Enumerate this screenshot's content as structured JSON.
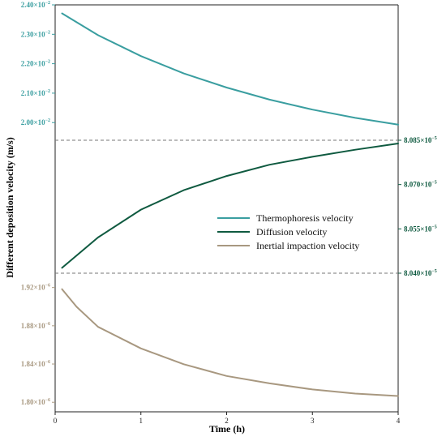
{
  "chart_data": {
    "type": "line",
    "xlabel": "Time (h)",
    "ylabel": "Different deposition velocity (m/s)",
    "x_ticks": [
      "0",
      "1",
      "2",
      "3",
      "4"
    ],
    "xlim": [
      0,
      4
    ],
    "grid": false,
    "legend": {
      "placement": "center-right",
      "entries": [
        "Thermophoresis velocity",
        "Diffusion velocity",
        "Inertial impaction velocity"
      ]
    },
    "panels": [
      {
        "axis": "left",
        "ylim": [
          0.0194,
          0.024
        ],
        "ticks": [
          {
            "value": 0.02,
            "mant": "2.00",
            "exp": "−2"
          },
          {
            "value": 0.021,
            "mant": "2.10",
            "exp": "−2"
          },
          {
            "value": 0.022,
            "mant": "2.20",
            "exp": "−2"
          },
          {
            "value": 0.023,
            "mant": "2.30",
            "exp": "−2"
          },
          {
            "value": 0.024,
            "mant": "2.40",
            "exp": "−2"
          }
        ]
      },
      {
        "axis": "right",
        "ylim": [
          8.04e-05,
          8.085e-05
        ],
        "ticks": [
          {
            "value": 8.04e-05,
            "mant": "8.040",
            "exp": "−5"
          },
          {
            "value": 8.055e-05,
            "mant": "8.055",
            "exp": "−5"
          },
          {
            "value": 8.07e-05,
            "mant": "8.070",
            "exp": "−5"
          },
          {
            "value": 8.085e-05,
            "mant": "8.085",
            "exp": "−5"
          }
        ]
      },
      {
        "axis": "left",
        "ylim": [
          1.79e-06,
          1.935e-06
        ],
        "ticks": [
          {
            "value": 1.8e-06,
            "mant": "1.80",
            "exp": "−6"
          },
          {
            "value": 1.84e-06,
            "mant": "1.84",
            "exp": "−6"
          },
          {
            "value": 1.88e-06,
            "mant": "1.88",
            "exp": "−6"
          },
          {
            "value": 1.92e-06,
            "mant": "1.92",
            "exp": "−6"
          }
        ]
      }
    ],
    "series": [
      {
        "name": "Thermophoresis velocity",
        "color": "#3a9ea0",
        "panel": 0,
        "x": [
          0.08,
          0.5,
          1.0,
          1.5,
          2.0,
          2.5,
          3.0,
          3.5,
          4.0
        ],
        "y": [
          0.02371,
          0.02297,
          0.02226,
          0.02167,
          0.02119,
          0.02078,
          0.02044,
          0.02016,
          0.01993
        ]
      },
      {
        "name": "Diffusion velocity",
        "color": "#0f5a40",
        "panel": 1,
        "x": [
          0.08,
          0.5,
          1.0,
          1.5,
          2.0,
          2.5,
          3.0,
          3.5,
          4.0
        ],
        "y": [
          8.0418e-05,
          8.0521e-05,
          8.0615e-05,
          8.0681e-05,
          8.0729e-05,
          8.0767e-05,
          8.0794e-05,
          8.0818e-05,
          8.0839e-05
        ]
      },
      {
        "name": "Inertial impaction velocity",
        "color": "#a89880",
        "panel": 2,
        "x": [
          0.08,
          0.25,
          0.5,
          1.0,
          1.5,
          2.0,
          2.5,
          3.0,
          3.5,
          4.0
        ],
        "y": [
          1.9183e-06,
          1.8999e-06,
          1.8789e-06,
          1.8563e-06,
          1.8398e-06,
          1.8275e-06,
          1.8198e-06,
          1.8134e-06,
          1.8091e-06,
          1.8065e-06
        ]
      }
    ]
  }
}
